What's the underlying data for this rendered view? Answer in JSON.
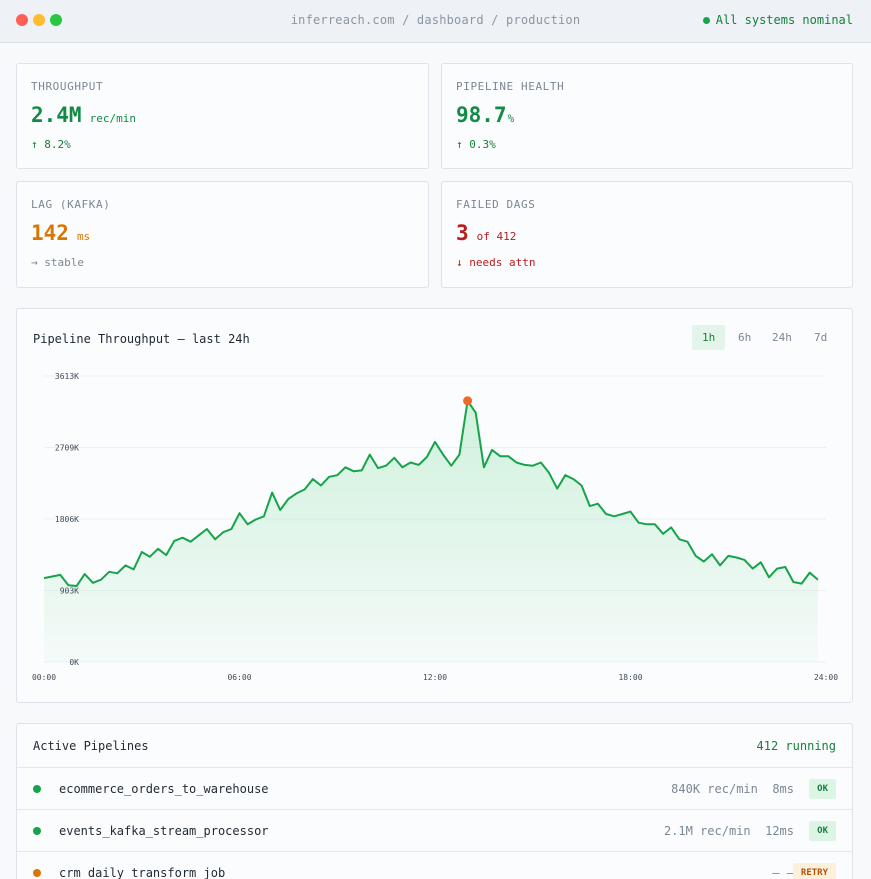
{
  "window": {
    "breadcrumb": "inferreach.com / dashboard / production",
    "status_text": "All systems nominal",
    "status_color": "#16a34a"
  },
  "kpis": [
    {
      "label": "THROUGHPUT",
      "value": "2.4M",
      "unit": "rec/min",
      "delta": "↑ 8.2%",
      "color": "#138a45"
    },
    {
      "label": "PIPELINE HEALTH",
      "value": "98.7",
      "unit": "%",
      "delta": "↑ 0.3%",
      "color": "#138a45"
    },
    {
      "label": "LAG (KAFKA)",
      "value": "142",
      "unit": "ms",
      "delta": "→ stable",
      "color": "#d97706"
    },
    {
      "label": "FAILED DAGS",
      "value": "3",
      "unit": "of 412",
      "delta": "↓ needs attn",
      "color": "#b91c1c"
    }
  ],
  "chart": {
    "title": "Pipeline Throughput — last 24h",
    "ranges": [
      "1h",
      "6h",
      "24h",
      "7d"
    ],
    "active_range": "1h"
  },
  "chart_data": {
    "type": "area",
    "title": "Pipeline Throughput — last 24h",
    "xlabel": "",
    "ylabel": "",
    "x_ticks": [
      "00:00",
      "06:00",
      "12:00",
      "18:00",
      "24:00"
    ],
    "y_ticks": [
      "0K",
      "903K",
      "1806K",
      "2709K",
      "3613K"
    ],
    "xlim": [
      0,
      24
    ],
    "ylim": [
      0,
      3613
    ],
    "y_unit": "K rec/min",
    "grid": true,
    "peak": {
      "x": 13.0,
      "y": 3300
    },
    "series": [
      {
        "values": [
          [
            0.0,
            1060
          ],
          [
            0.25,
            1080
          ],
          [
            0.5,
            1100
          ],
          [
            0.75,
            970
          ],
          [
            1.0,
            960
          ],
          [
            1.25,
            1110
          ],
          [
            1.5,
            1000
          ],
          [
            1.75,
            1040
          ],
          [
            2.0,
            1140
          ],
          [
            2.25,
            1120
          ],
          [
            2.5,
            1220
          ],
          [
            2.75,
            1170
          ],
          [
            3.0,
            1390
          ],
          [
            3.25,
            1330
          ],
          [
            3.5,
            1430
          ],
          [
            3.75,
            1350
          ],
          [
            4.0,
            1530
          ],
          [
            4.25,
            1570
          ],
          [
            4.5,
            1520
          ],
          [
            4.75,
            1600
          ],
          [
            5.0,
            1680
          ],
          [
            5.25,
            1550
          ],
          [
            5.5,
            1640
          ],
          [
            5.75,
            1680
          ],
          [
            6.0,
            1880
          ],
          [
            6.25,
            1740
          ],
          [
            6.5,
            1800
          ],
          [
            6.75,
            1840
          ],
          [
            7.0,
            2140
          ],
          [
            7.25,
            1920
          ],
          [
            7.5,
            2060
          ],
          [
            7.75,
            2130
          ],
          [
            8.0,
            2180
          ],
          [
            8.25,
            2310
          ],
          [
            8.5,
            2230
          ],
          [
            8.75,
            2340
          ],
          [
            9.0,
            2360
          ],
          [
            9.25,
            2460
          ],
          [
            9.5,
            2410
          ],
          [
            9.75,
            2420
          ],
          [
            10.0,
            2620
          ],
          [
            10.25,
            2450
          ],
          [
            10.5,
            2480
          ],
          [
            10.75,
            2580
          ],
          [
            11.0,
            2460
          ],
          [
            11.25,
            2520
          ],
          [
            11.5,
            2490
          ],
          [
            11.75,
            2590
          ],
          [
            12.0,
            2780
          ],
          [
            12.25,
            2620
          ],
          [
            12.5,
            2480
          ],
          [
            12.75,
            2620
          ],
          [
            13.0,
            3300
          ],
          [
            13.25,
            3150
          ],
          [
            13.5,
            2460
          ],
          [
            13.75,
            2680
          ],
          [
            14.0,
            2600
          ],
          [
            14.25,
            2600
          ],
          [
            14.5,
            2520
          ],
          [
            14.75,
            2490
          ],
          [
            15.0,
            2480
          ],
          [
            15.25,
            2520
          ],
          [
            15.5,
            2390
          ],
          [
            15.75,
            2190
          ],
          [
            16.0,
            2360
          ],
          [
            16.25,
            2310
          ],
          [
            16.5,
            2230
          ],
          [
            16.75,
            1970
          ],
          [
            17.0,
            2000
          ],
          [
            17.25,
            1870
          ],
          [
            17.5,
            1840
          ],
          [
            17.75,
            1870
          ],
          [
            18.0,
            1900
          ],
          [
            18.25,
            1760
          ],
          [
            18.5,
            1740
          ],
          [
            18.75,
            1740
          ],
          [
            19.0,
            1620
          ],
          [
            19.25,
            1700
          ],
          [
            19.5,
            1550
          ],
          [
            19.75,
            1520
          ],
          [
            20.0,
            1340
          ],
          [
            20.25,
            1270
          ],
          [
            20.5,
            1360
          ],
          [
            20.75,
            1220
          ],
          [
            21.0,
            1340
          ],
          [
            21.25,
            1320
          ],
          [
            21.5,
            1290
          ],
          [
            21.75,
            1180
          ],
          [
            22.0,
            1260
          ],
          [
            22.25,
            1070
          ],
          [
            22.5,
            1180
          ],
          [
            22.75,
            1200
          ],
          [
            23.0,
            1010
          ],
          [
            23.25,
            990
          ],
          [
            23.5,
            1130
          ],
          [
            23.75,
            1040
          ]
        ],
        "color": "#16a34a"
      }
    ]
  },
  "pipelines": {
    "title": "Active Pipelines",
    "count_text": "412 running",
    "rows": [
      {
        "name": "ecommerce_orders_to_warehouse",
        "meta": "840K rec/min  8ms",
        "status": "OK",
        "dot_color": "#16a34a"
      },
      {
        "name": "events_kafka_stream_processor",
        "meta": "2.1M rec/min  12ms",
        "status": "OK",
        "dot_color": "#16a34a"
      },
      {
        "name": "crm_daily_transform_job",
        "meta": "— —",
        "status": "RETRY",
        "dot_color": "#d97706"
      }
    ]
  }
}
